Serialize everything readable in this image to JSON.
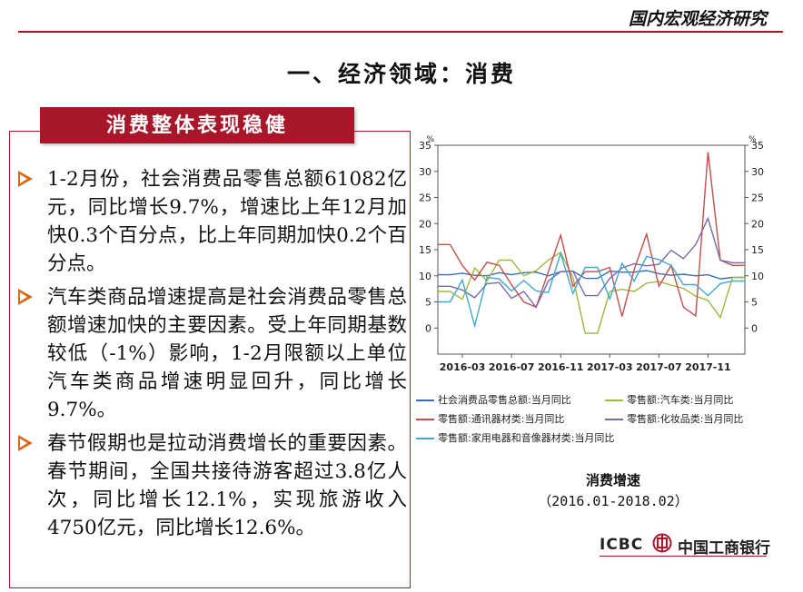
{
  "header": {
    "title": "国内宏观经济研究"
  },
  "section_title": "一、经济领域：消费",
  "box": {
    "heading": "消费整体表现稳健",
    "bullets": [
      "1-2月份，社会消费品零售总额61082亿元，同比增长9.7%，增速比上年12月加快0.3个百分点，比上年同期加快0.2个百分点。",
      "汽车类商品增速提高是社会消费品零售总额增速加快的主要因素。受上年同期基数较低（-1%）影响，1-2月限额以上单位汽车类商品增速明显回升，同比增长9.7%。",
      "春节假期也是拉动消费增长的重要因素。春节期间，全国共接待游客超过3.8亿人次，同比增长12.1%，实现旅游收入4750亿元，同比增长12.6%。"
    ]
  },
  "chart_caption": {
    "title": "消费增速",
    "range": "（2016.01-2018.02）"
  },
  "logo": {
    "en": "ICBC",
    "cn": "中国工商银行"
  },
  "colors": {
    "accent": "#a8162a",
    "bullet_arrow": "#d46a1a",
    "total": "#3a6db3",
    "auto": "#9bbb3c",
    "telecom": "#c0504d",
    "cosmetics": "#7b68a6",
    "appliance": "#3fa8d0"
  },
  "chart_data": {
    "type": "line",
    "title": "",
    "xlabel": "",
    "ylabel": "",
    "y_unit_left": "%",
    "y_unit_right": "%",
    "ylim": [
      -5,
      35
    ],
    "yticks": [
      0,
      5,
      10,
      15,
      20,
      25,
      30,
      35
    ],
    "x": [
      "2016-01",
      "2016-02",
      "2016-03",
      "2016-04",
      "2016-05",
      "2016-06",
      "2016-07",
      "2016-08",
      "2016-09",
      "2016-10",
      "2016-11",
      "2016-12",
      "2017-01",
      "2017-02",
      "2017-03",
      "2017-04",
      "2017-05",
      "2017-06",
      "2017-07",
      "2017-08",
      "2017-09",
      "2017-10",
      "2017-11",
      "2017-12",
      "2018-01",
      "2018-02"
    ],
    "x_tick_labels": [
      "2016-03",
      "2016-07",
      "2016-11",
      "2017-03",
      "2017-07",
      "2017-11"
    ],
    "x_tick_indices": [
      2,
      6,
      10,
      14,
      18,
      22
    ],
    "grid": false,
    "legend_position": "bottom",
    "series": [
      {
        "name": "社会消费品零售总额:当月同比",
        "color": "#3a6db3",
        "values": [
          10.2,
          10.2,
          10.5,
          10.1,
          10.0,
          10.6,
          10.2,
          10.6,
          10.7,
          10.0,
          10.8,
          10.9,
          9.5,
          9.5,
          10.9,
          10.7,
          10.7,
          11.0,
          10.4,
          10.1,
          10.3,
          10.0,
          10.2,
          9.4,
          9.7,
          9.7
        ]
      },
      {
        "name": "零售额:汽车类:当月同比",
        "color": "#9bbb3c",
        "values": [
          7.0,
          7.0,
          5.5,
          11.5,
          9.0,
          13.0,
          13.0,
          10.0,
          11.0,
          13.0,
          14.5,
          9.7,
          -1.0,
          -1.0,
          7.0,
          7.4,
          7.0,
          8.6,
          8.9,
          8.2,
          7.6,
          6.1,
          5.3,
          2.0,
          9.7,
          9.7
        ]
      },
      {
        "name": "零售额:通讯器材类:当月同比",
        "color": "#c0504d",
        "values": [
          16.0,
          16.0,
          12.0,
          9.2,
          12.6,
          12.0,
          8.3,
          5.0,
          4.0,
          10.8,
          17.8,
          8.0,
          10.8,
          10.8,
          11.6,
          2.2,
          11.3,
          18.0,
          8.0,
          12.0,
          4.0,
          2.3,
          33.7,
          13.0,
          12.0,
          12.0
        ]
      },
      {
        "name": "零售额:化妆品类:当月同比",
        "color": "#7b68a6",
        "values": [
          8.0,
          8.0,
          7.3,
          5.8,
          8.5,
          8.7,
          5.7,
          7.0,
          4.0,
          9.0,
          10.8,
          10.9,
          6.2,
          6.2,
          9.5,
          11.5,
          12.3,
          11.9,
          12.2,
          14.9,
          13.3,
          16.0,
          21.0,
          13.0,
          12.5,
          12.5
        ]
      },
      {
        "name": "零售额:家用电器和音像器材类:当月同比",
        "color": "#3fa8d0",
        "values": [
          5.0,
          5.0,
          9.2,
          0.4,
          9.7,
          9.4,
          7.1,
          9.1,
          7.1,
          6.8,
          14.3,
          6.6,
          11.6,
          11.6,
          5.6,
          12.4,
          9.0,
          13.7,
          13.1,
          12.0,
          8.3,
          8.3,
          6.2,
          8.5,
          9.0,
          9.0
        ]
      }
    ]
  }
}
